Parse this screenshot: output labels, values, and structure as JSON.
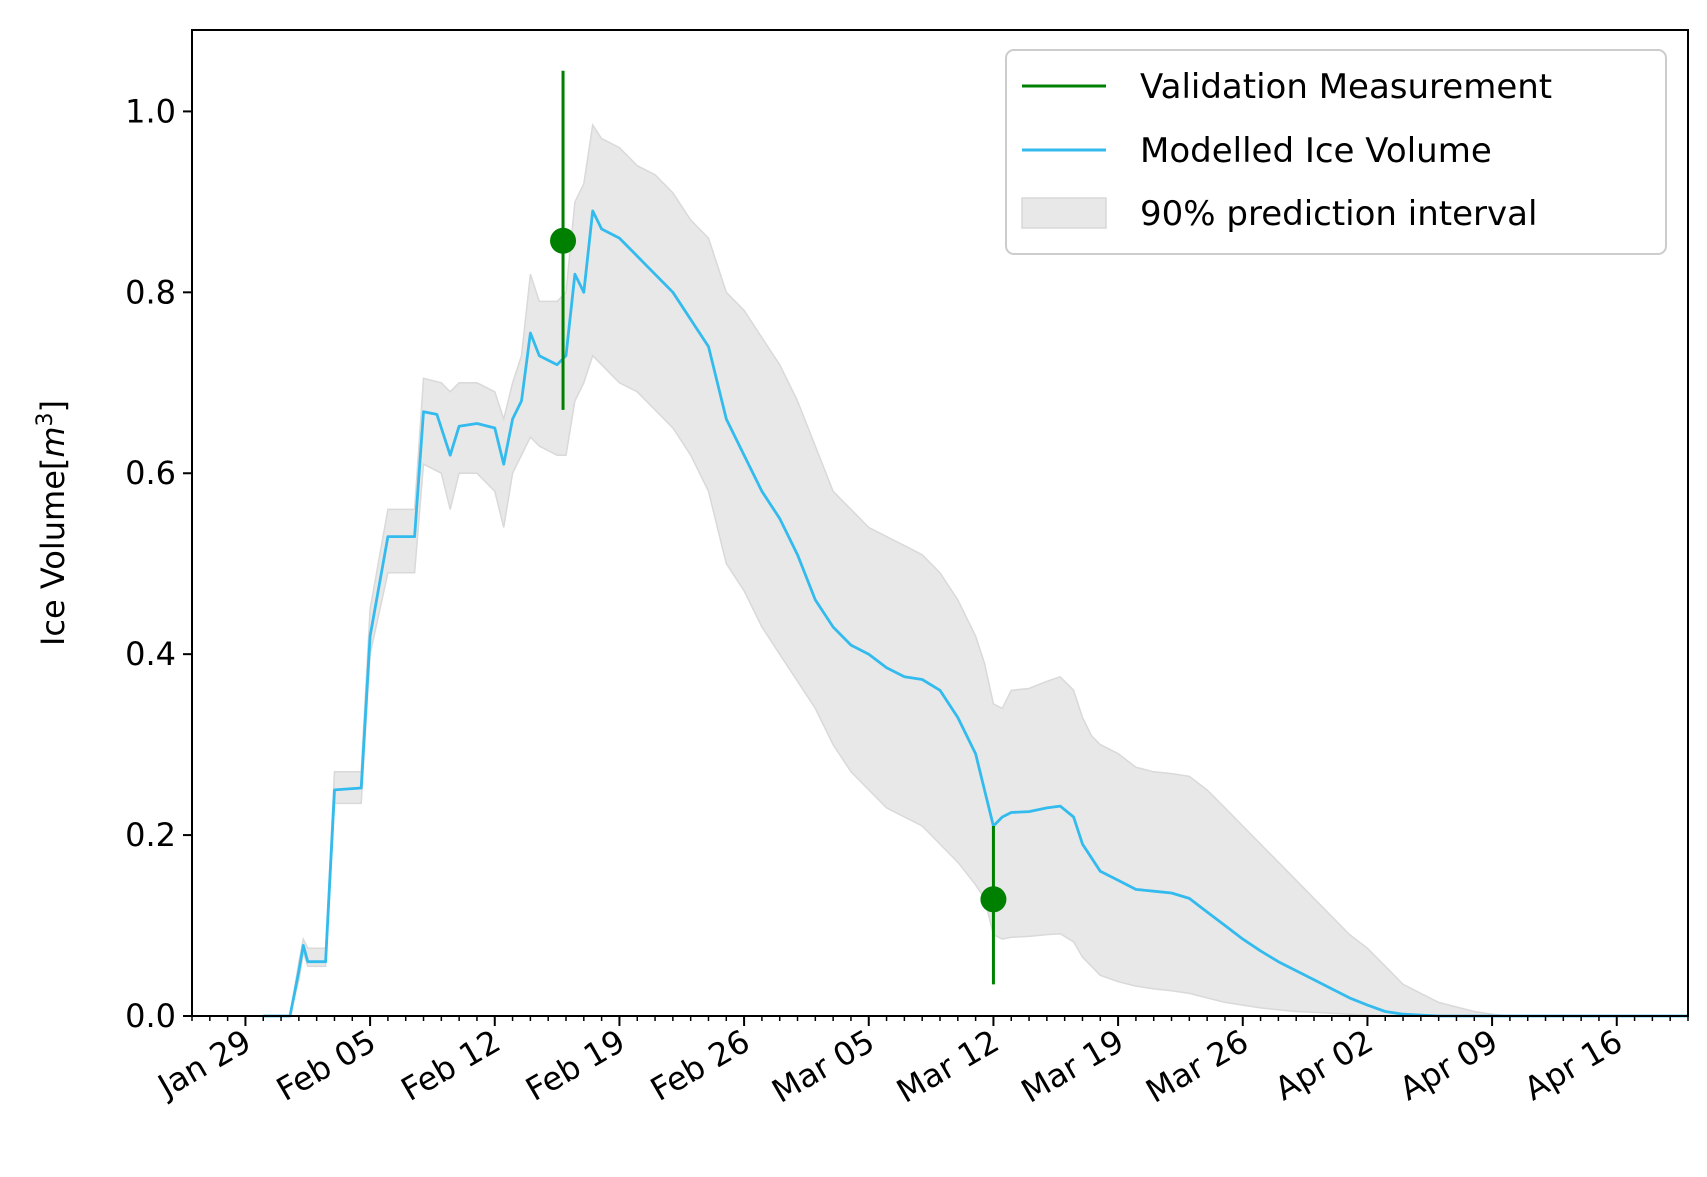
{
  "chart_data": {
    "type": "line",
    "title": "",
    "xlabel": "",
    "ylabel": "Ice Volume[m³]",
    "ylabel_base": "Ice Volume[",
    "ylabel_unit_symbol": "m",
    "ylabel_unit_exp": "3",
    "ylabel_close": "]",
    "x_axis": {
      "type": "date",
      "range": [
        "2019-01-26",
        "2019-04-20"
      ],
      "major_ticks": [
        "2019-01-29",
        "2019-02-05",
        "2019-02-12",
        "2019-02-19",
        "2019-02-26",
        "2019-03-05",
        "2019-03-12",
        "2019-03-19",
        "2019-03-26",
        "2019-04-02",
        "2019-04-09",
        "2019-04-16"
      ],
      "tick_labels": [
        "Jan 29",
        "Feb 05",
        "Feb 12",
        "Feb 19",
        "Feb 26",
        "Mar 05",
        "Mar 12",
        "Mar 19",
        "Mar 26",
        "Apr 02",
        "Apr 09",
        "Apr 16"
      ]
    },
    "y_axis": {
      "range": [
        0,
        1.09
      ],
      "ticks": [
        0.0,
        0.2,
        0.4,
        0.6,
        0.8,
        1.0
      ],
      "tick_labels": [
        "0.0",
        "0.2",
        "0.4",
        "0.6",
        "0.8",
        "1.0"
      ]
    },
    "grid": false,
    "legend_position": "top-right",
    "legend": [
      {
        "label": "Validation Measurement",
        "kind": "line",
        "color": "#008000"
      },
      {
        "label": "Modelled Ice Volume",
        "kind": "line",
        "color": "#33bbee"
      },
      {
        "label": "90% prediction interval",
        "kind": "patch",
        "color": "#e8e8e8"
      }
    ],
    "series": [
      {
        "name": "Modelled Ice Volume",
        "color": "#33bbee",
        "points": [
          [
            "2019-01-30T00:00",
            0.0
          ],
          [
            "2019-01-31T12:00",
            0.0
          ],
          [
            "2019-02-01T00:00",
            0.05
          ],
          [
            "2019-02-01T06:00",
            0.078
          ],
          [
            "2019-02-01T12:00",
            0.06
          ],
          [
            "2019-02-02T12:00",
            0.06
          ],
          [
            "2019-02-03T00:00",
            0.25
          ],
          [
            "2019-02-04T12:00",
            0.252
          ],
          [
            "2019-02-05T00:00",
            0.42
          ],
          [
            "2019-02-06T00:00",
            0.53
          ],
          [
            "2019-02-07T12:00",
            0.53
          ],
          [
            "2019-02-08T00:00",
            0.668
          ],
          [
            "2019-02-08T18:00",
            0.665
          ],
          [
            "2019-02-09T12:00",
            0.62
          ],
          [
            "2019-02-10T00:00",
            0.652
          ],
          [
            "2019-02-11T00:00",
            0.655
          ],
          [
            "2019-02-12T00:00",
            0.65
          ],
          [
            "2019-02-12T12:00",
            0.61
          ],
          [
            "2019-02-13T00:00",
            0.66
          ],
          [
            "2019-02-13T12:00",
            0.68
          ],
          [
            "2019-02-14T00:00",
            0.755
          ],
          [
            "2019-02-14T12:00",
            0.73
          ],
          [
            "2019-02-15T12:00",
            0.72
          ],
          [
            "2019-02-16T00:00",
            0.73
          ],
          [
            "2019-02-16T12:00",
            0.82
          ],
          [
            "2019-02-17T00:00",
            0.8
          ],
          [
            "2019-02-17T12:00",
            0.89
          ],
          [
            "2019-02-18T00:00",
            0.87
          ],
          [
            "2019-02-19T00:00",
            0.86
          ],
          [
            "2019-02-20T00:00",
            0.84
          ],
          [
            "2019-02-21T00:00",
            0.82
          ],
          [
            "2019-02-22T00:00",
            0.8
          ],
          [
            "2019-02-23T00:00",
            0.77
          ],
          [
            "2019-02-24T00:00",
            0.74
          ],
          [
            "2019-02-25T00:00",
            0.66
          ],
          [
            "2019-02-26T00:00",
            0.62
          ],
          [
            "2019-02-27T00:00",
            0.58
          ],
          [
            "2019-02-28T00:00",
            0.55
          ],
          [
            "2019-03-01T00:00",
            0.51
          ],
          [
            "2019-03-02T00:00",
            0.46
          ],
          [
            "2019-03-03T00:00",
            0.43
          ],
          [
            "2019-03-04T00:00",
            0.41
          ],
          [
            "2019-03-05T00:00",
            0.4
          ],
          [
            "2019-03-06T00:00",
            0.385
          ],
          [
            "2019-03-07T00:00",
            0.375
          ],
          [
            "2019-03-08T00:00",
            0.372
          ],
          [
            "2019-03-09T00:00",
            0.36
          ],
          [
            "2019-03-10T00:00",
            0.33
          ],
          [
            "2019-03-11T00:00",
            0.29
          ],
          [
            "2019-03-11T12:00",
            0.25
          ],
          [
            "2019-03-12T00:00",
            0.21
          ],
          [
            "2019-03-12T12:00",
            0.22
          ],
          [
            "2019-03-13T00:00",
            0.225
          ],
          [
            "2019-03-14T00:00",
            0.226
          ],
          [
            "2019-03-15T00:00",
            0.23
          ],
          [
            "2019-03-15T18:00",
            0.232
          ],
          [
            "2019-03-16T12:00",
            0.22
          ],
          [
            "2019-03-17T00:00",
            0.19
          ],
          [
            "2019-03-17T12:00",
            0.175
          ],
          [
            "2019-03-18T00:00",
            0.16
          ],
          [
            "2019-03-19T00:00",
            0.15
          ],
          [
            "2019-03-20T00:00",
            0.14
          ],
          [
            "2019-03-21T00:00",
            0.138
          ],
          [
            "2019-03-22T00:00",
            0.136
          ],
          [
            "2019-03-23T00:00",
            0.13
          ],
          [
            "2019-03-24T00:00",
            0.115
          ],
          [
            "2019-03-25T00:00",
            0.1
          ],
          [
            "2019-03-26T00:00",
            0.085
          ],
          [
            "2019-03-27T00:00",
            0.072
          ],
          [
            "2019-03-28T00:00",
            0.06
          ],
          [
            "2019-03-29T00:00",
            0.05
          ],
          [
            "2019-03-30T00:00",
            0.04
          ],
          [
            "2019-03-31T00:00",
            0.03
          ],
          [
            "2019-04-01T00:00",
            0.02
          ],
          [
            "2019-04-02T00:00",
            0.012
          ],
          [
            "2019-04-03T00:00",
            0.005
          ],
          [
            "2019-04-04T00:00",
            0.002
          ],
          [
            "2019-04-05T00:00",
            0.001
          ],
          [
            "2019-04-06T00:00",
            0.0
          ],
          [
            "2019-04-20T00:00",
            0.0
          ]
        ]
      }
    ],
    "interval": {
      "name": "90% prediction interval",
      "color": "#e8e8e8",
      "points": [
        [
          "2019-01-31T12:00",
          0.0,
          0.0
        ],
        [
          "2019-02-01T00:00",
          0.04,
          0.06
        ],
        [
          "2019-02-01T06:00",
          0.07,
          0.085
        ],
        [
          "2019-02-01T12:00",
          0.055,
          0.075
        ],
        [
          "2019-02-02T12:00",
          0.055,
          0.075
        ],
        [
          "2019-02-03T00:00",
          0.235,
          0.27
        ],
        [
          "2019-02-04T12:00",
          0.235,
          0.27
        ],
        [
          "2019-02-05T00:00",
          0.4,
          0.45
        ],
        [
          "2019-02-06T00:00",
          0.49,
          0.56
        ],
        [
          "2019-02-07T12:00",
          0.49,
          0.56
        ],
        [
          "2019-02-08T00:00",
          0.61,
          0.705
        ],
        [
          "2019-02-09T00:00",
          0.6,
          0.7
        ],
        [
          "2019-02-09T12:00",
          0.56,
          0.69
        ],
        [
          "2019-02-10T00:00",
          0.6,
          0.7
        ],
        [
          "2019-02-11T00:00",
          0.6,
          0.7
        ],
        [
          "2019-02-12T00:00",
          0.58,
          0.69
        ],
        [
          "2019-02-12T12:00",
          0.54,
          0.66
        ],
        [
          "2019-02-13T00:00",
          0.6,
          0.7
        ],
        [
          "2019-02-13T12:00",
          0.62,
          0.73
        ],
        [
          "2019-02-14T00:00",
          0.64,
          0.82
        ],
        [
          "2019-02-14T12:00",
          0.63,
          0.79
        ],
        [
          "2019-02-15T12:00",
          0.62,
          0.79
        ],
        [
          "2019-02-16T00:00",
          0.62,
          0.8
        ],
        [
          "2019-02-16T12:00",
          0.68,
          0.9
        ],
        [
          "2019-02-17T00:00",
          0.7,
          0.92
        ],
        [
          "2019-02-17T12:00",
          0.73,
          0.985
        ],
        [
          "2019-02-18T00:00",
          0.72,
          0.97
        ],
        [
          "2019-02-19T00:00",
          0.7,
          0.96
        ],
        [
          "2019-02-20T00:00",
          0.69,
          0.94
        ],
        [
          "2019-02-21T00:00",
          0.67,
          0.93
        ],
        [
          "2019-02-22T00:00",
          0.65,
          0.91
        ],
        [
          "2019-02-23T00:00",
          0.62,
          0.88
        ],
        [
          "2019-02-24T00:00",
          0.58,
          0.86
        ],
        [
          "2019-02-25T00:00",
          0.5,
          0.8
        ],
        [
          "2019-02-26T00:00",
          0.47,
          0.78
        ],
        [
          "2019-02-27T00:00",
          0.43,
          0.75
        ],
        [
          "2019-02-28T00:00",
          0.4,
          0.72
        ],
        [
          "2019-03-01T00:00",
          0.37,
          0.68
        ],
        [
          "2019-03-02T00:00",
          0.34,
          0.63
        ],
        [
          "2019-03-03T00:00",
          0.3,
          0.58
        ],
        [
          "2019-03-04T00:00",
          0.27,
          0.56
        ],
        [
          "2019-03-05T00:00",
          0.25,
          0.54
        ],
        [
          "2019-03-06T00:00",
          0.23,
          0.53
        ],
        [
          "2019-03-07T00:00",
          0.22,
          0.52
        ],
        [
          "2019-03-08T00:00",
          0.21,
          0.51
        ],
        [
          "2019-03-09T00:00",
          0.19,
          0.49
        ],
        [
          "2019-03-10T00:00",
          0.17,
          0.46
        ],
        [
          "2019-03-11T00:00",
          0.145,
          0.42
        ],
        [
          "2019-03-11T12:00",
          0.13,
          0.39
        ],
        [
          "2019-03-12T00:00",
          0.09,
          0.345
        ],
        [
          "2019-03-12T12:00",
          0.085,
          0.34
        ],
        [
          "2019-03-13T00:00",
          0.087,
          0.36
        ],
        [
          "2019-03-14T00:00",
          0.088,
          0.362
        ],
        [
          "2019-03-15T00:00",
          0.09,
          0.37
        ],
        [
          "2019-03-15T18:00",
          0.091,
          0.375
        ],
        [
          "2019-03-16T12:00",
          0.082,
          0.36
        ],
        [
          "2019-03-17T00:00",
          0.065,
          0.33
        ],
        [
          "2019-03-17T12:00",
          0.055,
          0.31
        ],
        [
          "2019-03-18T00:00",
          0.045,
          0.3
        ],
        [
          "2019-03-19T00:00",
          0.038,
          0.29
        ],
        [
          "2019-03-20T00:00",
          0.033,
          0.275
        ],
        [
          "2019-03-21T00:00",
          0.03,
          0.27
        ],
        [
          "2019-03-22T00:00",
          0.028,
          0.268
        ],
        [
          "2019-03-23T00:00",
          0.025,
          0.265
        ],
        [
          "2019-03-24T00:00",
          0.02,
          0.25
        ],
        [
          "2019-03-25T00:00",
          0.015,
          0.23
        ],
        [
          "2019-03-26T00:00",
          0.012,
          0.21
        ],
        [
          "2019-03-27T00:00",
          0.009,
          0.19
        ],
        [
          "2019-03-28T00:00",
          0.007,
          0.17
        ],
        [
          "2019-03-29T00:00",
          0.005,
          0.15
        ],
        [
          "2019-03-30T00:00",
          0.004,
          0.13
        ],
        [
          "2019-03-31T00:00",
          0.003,
          0.11
        ],
        [
          "2019-04-01T00:00",
          0.002,
          0.09
        ],
        [
          "2019-04-02T00:00",
          0.001,
          0.075
        ],
        [
          "2019-04-03T00:00",
          0.0,
          0.055
        ],
        [
          "2019-04-04T00:00",
          0.0,
          0.035
        ],
        [
          "2019-04-05T00:00",
          0.0,
          0.025
        ],
        [
          "2019-04-06T00:00",
          0.0,
          0.015
        ],
        [
          "2019-04-07T00:00",
          0.0,
          0.01
        ],
        [
          "2019-04-08T00:00",
          0.0,
          0.005
        ],
        [
          "2019-04-09T00:00",
          0.0,
          0.002
        ],
        [
          "2019-04-10T00:00",
          0.0,
          0.0
        ]
      ]
    },
    "validation_measurements": [
      {
        "name": "Validation Measurement",
        "date": "2019-02-15T20:00",
        "value": 0.857,
        "lower": 0.67,
        "upper": 1.045,
        "color": "#008000"
      },
      {
        "name": "Validation Measurement",
        "date": "2019-03-12T00:00",
        "value": 0.129,
        "lower": 0.035,
        "upper": 0.21,
        "color": "#008000"
      }
    ]
  }
}
